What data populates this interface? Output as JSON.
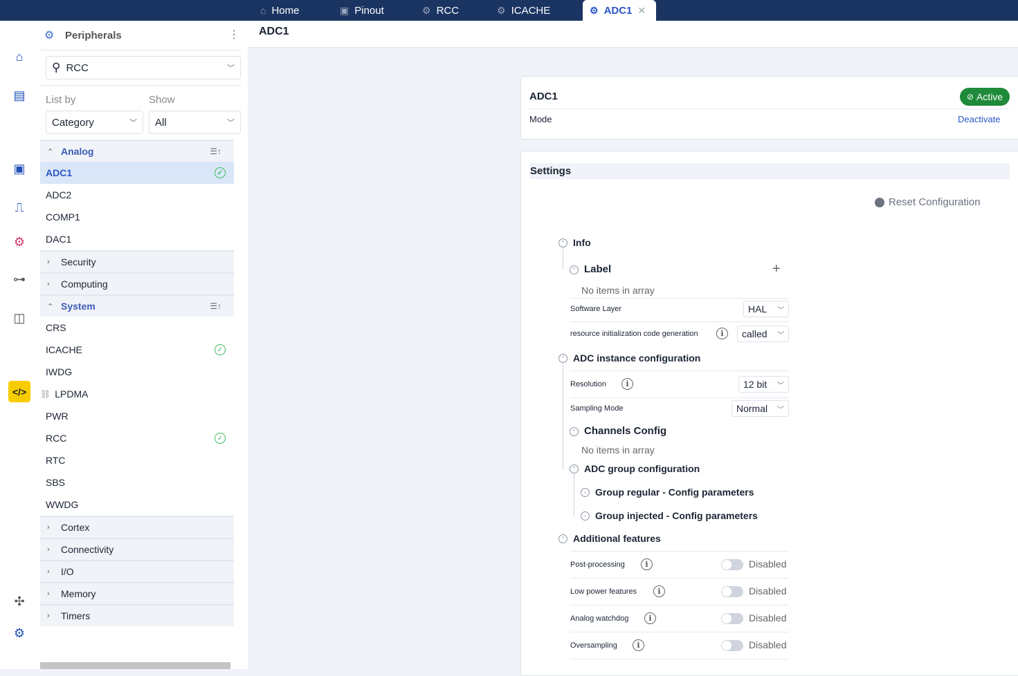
{
  "tabs": [
    {
      "label": "Home",
      "icon": "home-icon"
    },
    {
      "label": "Pinout",
      "icon": "chip-icon"
    },
    {
      "label": "RCC",
      "icon": "peripherals-icon"
    },
    {
      "label": "ICACHE",
      "icon": "peripherals-icon"
    },
    {
      "label": "ADC1",
      "icon": "peripherals-icon",
      "active": true
    }
  ],
  "sidebar": {
    "title": "Peripherals",
    "search_value": "RCC",
    "list_by_label": "List by",
    "show_label": "Show",
    "list_by_value": "Category",
    "show_value": "All",
    "rows": [
      {
        "type": "group",
        "label": "Analog",
        "expanded": true
      },
      {
        "type": "item",
        "label": "ADC1",
        "selected": true,
        "checked": true
      },
      {
        "type": "item",
        "label": "ADC2"
      },
      {
        "type": "item",
        "label": "COMP1"
      },
      {
        "type": "item",
        "label": "DAC1"
      },
      {
        "type": "group",
        "label": "Security"
      },
      {
        "type": "group",
        "label": "Computing"
      },
      {
        "type": "group",
        "label": "System",
        "expanded": true
      },
      {
        "type": "item",
        "label": "CRS"
      },
      {
        "type": "item",
        "label": "ICACHE",
        "checked": true
      },
      {
        "type": "item",
        "label": "IWDG"
      },
      {
        "type": "item",
        "label": "LPDMA",
        "link": true
      },
      {
        "type": "item",
        "label": "PWR"
      },
      {
        "type": "item",
        "label": "RCC",
        "checked": true
      },
      {
        "type": "item",
        "label": "RTC"
      },
      {
        "type": "item",
        "label": "SBS"
      },
      {
        "type": "item",
        "label": "WWDG"
      },
      {
        "type": "group",
        "label": "Cortex"
      },
      {
        "type": "group",
        "label": "Connectivity"
      },
      {
        "type": "group",
        "label": "I/O"
      },
      {
        "type": "group",
        "label": "Memory"
      },
      {
        "type": "group",
        "label": "Timers"
      }
    ]
  },
  "main": {
    "title": "ADC1",
    "card": {
      "title": "ADC1",
      "status": "Active",
      "mode_label": "Mode",
      "deactivate": "Deactivate",
      "status_color": "#1e8a3a"
    },
    "settings": {
      "title": "Settings",
      "reset": "Reset Configuration",
      "info": "Info",
      "label": "Label",
      "no_items": "No items in array",
      "software_layer": "Software Layer",
      "software_layer_value": "HAL",
      "resource_init": "resource initialization code generation",
      "resource_init_value": "called",
      "adc_instance": "ADC instance configuration",
      "resolution": "Resolution",
      "resolution_value": "12 bit",
      "sampling_mode": "Sampling Mode",
      "sampling_mode_value": "Normal",
      "channels_config": "Channels Config",
      "channels_no_items": "No items in array",
      "adc_group": "ADC group configuration",
      "group_regular": "Group regular - Config parameters",
      "group_injected": "Group injected - Config parameters",
      "additional": "Additional features",
      "features": [
        {
          "label": "Post-processing",
          "value": "Disabled"
        },
        {
          "label": "Low power features",
          "value": "Disabled"
        },
        {
          "label": "Analog watchdog",
          "value": "Disabled"
        },
        {
          "label": "Oversampling",
          "value": "Disabled"
        }
      ]
    }
  }
}
